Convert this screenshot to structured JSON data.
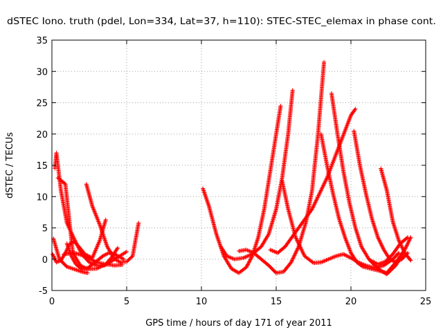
{
  "chart_data": {
    "type": "scatter",
    "title": "dSTEC Iono. truth (pdel, Lon=334, Lat=37, h=110): STEC-STEC_elemax in phase cont.",
    "xlabel": "GPS time / hours of day 171 of year 2011",
    "ylabel": "dSTEC  / TECUs",
    "xlim": [
      0,
      25
    ],
    "ylim": [
      -5,
      35
    ],
    "xticks": [
      0,
      5,
      10,
      15,
      20,
      25
    ],
    "yticks": [
      -5,
      0,
      5,
      10,
      15,
      20,
      25,
      30,
      35
    ],
    "grid": true,
    "marker": "plus",
    "color": "#ff0000",
    "series": [
      {
        "x": [
          0.1,
          0.5,
          1.0,
          1.5,
          2.0,
          2.4
        ],
        "y": [
          3.3,
          0.0,
          -1.2,
          -1.6,
          -2.0,
          -2.2
        ]
      },
      {
        "x": [
          0.2,
          0.3,
          0.6,
          1.0,
          1.5,
          2.0,
          2.5,
          3.0,
          3.5,
          3.8,
          4.2,
          4.6,
          5.0
        ],
        "y": [
          14.5,
          17.0,
          11.0,
          5.8,
          3.2,
          0.8,
          -0.5,
          -1.0,
          -1.0,
          -0.6,
          0.0,
          0.6,
          1.2
        ]
      },
      {
        "x": [
          0.05,
          0.3,
          0.6,
          0.9,
          1.2,
          1.5,
          1.8,
          2.2,
          2.7,
          3.2,
          3.6
        ],
        "y": [
          0.8,
          -0.5,
          -0.2,
          1.0,
          2.5,
          2.8,
          2.0,
          0.8,
          0.2,
          3.0,
          6.3
        ]
      },
      {
        "x": [
          0.4,
          0.9,
          1.4,
          1.9,
          2.4,
          3.0,
          3.6,
          4.0,
          4.4
        ],
        "y": [
          13.0,
          12.0,
          1.0,
          -1.0,
          -1.6,
          -1.5,
          -0.8,
          0.3,
          1.8
        ]
      },
      {
        "x": [
          1.0,
          1.3,
          1.6,
          2.0,
          2.4,
          2.9,
          3.4,
          3.8,
          4.2,
          4.8
        ],
        "y": [
          2.5,
          0.5,
          -0.8,
          -1.6,
          -1.4,
          -0.5,
          0.5,
          1.0,
          0.8,
          0.0
        ]
      },
      {
        "x": [
          2.3,
          2.7,
          3.2,
          3.7,
          4.2,
          4.6,
          5.0,
          5.4,
          5.8
        ],
        "y": [
          12.0,
          8.5,
          5.5,
          2.0,
          0.0,
          -0.5,
          -0.4,
          0.5,
          5.8
        ]
      },
      {
        "x": [
          0.8,
          1.5,
          2.2,
          3.0,
          3.6,
          4.2,
          4.7
        ],
        "y": [
          0.8,
          1.0,
          0.5,
          -0.5,
          -0.8,
          -1.0,
          -0.9
        ]
      },
      {
        "x": [
          10.1,
          10.5,
          11.0,
          11.5,
          12.0,
          12.5,
          13.0,
          13.4,
          13.8,
          14.2,
          14.6,
          15.0,
          15.3
        ],
        "y": [
          11.3,
          8.5,
          4.0,
          0.5,
          -1.5,
          -2.2,
          -1.3,
          0.5,
          3.5,
          8.0,
          14.0,
          20.0,
          24.5
        ]
      },
      {
        "x": [
          11.3,
          11.7,
          12.2,
          12.8,
          13.4,
          14.0,
          14.5,
          15.0,
          15.4,
          15.8,
          16.1
        ],
        "y": [
          2.0,
          0.5,
          0.0,
          0.2,
          0.8,
          2.0,
          4.0,
          8.0,
          13.0,
          20.0,
          27.0
        ]
      },
      {
        "x": [
          12.5,
          13.0,
          13.5,
          14.0,
          14.5,
          15.0,
          15.5,
          16.0,
          16.5,
          17.0,
          17.4,
          17.8,
          18.2
        ],
        "y": [
          1.3,
          1.5,
          1.0,
          0.0,
          -1.0,
          -2.2,
          -2.0,
          -0.5,
          2.0,
          6.0,
          11.0,
          20.0,
          31.5
        ]
      },
      {
        "x": [
          14.6,
          15.1,
          15.6,
          16.2,
          16.8,
          17.4,
          17.9,
          18.4,
          18.8,
          19.2,
          19.6,
          20.0,
          20.3
        ],
        "y": [
          1.5,
          1.0,
          2.0,
          4.0,
          6.0,
          8.0,
          10.5,
          13.0,
          15.5,
          18.0,
          20.5,
          23.0,
          24.0
        ]
      },
      {
        "x": [
          15.4,
          15.8,
          16.3,
          16.9,
          17.5,
          18.0,
          18.5,
          19.0,
          19.5,
          20.0,
          20.5,
          21.0,
          21.6,
          22.2,
          22.8,
          23.2
        ],
        "y": [
          12.5,
          8.0,
          3.5,
          0.5,
          -0.6,
          -0.5,
          0.0,
          0.5,
          0.8,
          0.2,
          -0.5,
          -1.0,
          -1.4,
          -1.0,
          0.0,
          1.0
        ]
      },
      {
        "x": [
          18.0,
          18.4,
          18.8,
          19.2,
          19.6,
          20.0,
          20.4,
          20.8,
          21.3,
          21.8,
          22.4,
          23.0,
          23.6,
          24.0
        ],
        "y": [
          20.0,
          15.0,
          10.5,
          6.5,
          3.5,
          1.0,
          -0.5,
          -1.2,
          -1.5,
          -1.8,
          -2.2,
          -0.5,
          1.5,
          3.5
        ]
      },
      {
        "x": [
          18.7,
          19.1,
          19.5,
          19.9,
          20.3,
          20.7,
          21.2,
          21.8,
          22.4,
          23.0,
          23.5
        ],
        "y": [
          26.5,
          20.0,
          14.0,
          9.0,
          5.0,
          2.0,
          0.0,
          -1.5,
          -2.4,
          -1.0,
          1.0
        ]
      },
      {
        "x": [
          20.2,
          20.6,
          21.0,
          21.4,
          21.8,
          22.2,
          22.6,
          23.0,
          23.4,
          23.8
        ],
        "y": [
          20.5,
          15.0,
          10.5,
          6.5,
          3.5,
          1.5,
          0.0,
          -0.5,
          0.0,
          1.0
        ]
      },
      {
        "x": [
          22.0,
          22.4,
          22.8,
          23.2,
          23.6,
          24.0
        ],
        "y": [
          14.5,
          11.0,
          6.0,
          3.0,
          1.0,
          -0.2
        ]
      },
      {
        "x": [
          21.3,
          21.8,
          22.3,
          22.8,
          23.3,
          23.8
        ],
        "y": [
          -0.2,
          -0.8,
          -0.4,
          0.8,
          2.5,
          3.5
        ]
      }
    ]
  }
}
